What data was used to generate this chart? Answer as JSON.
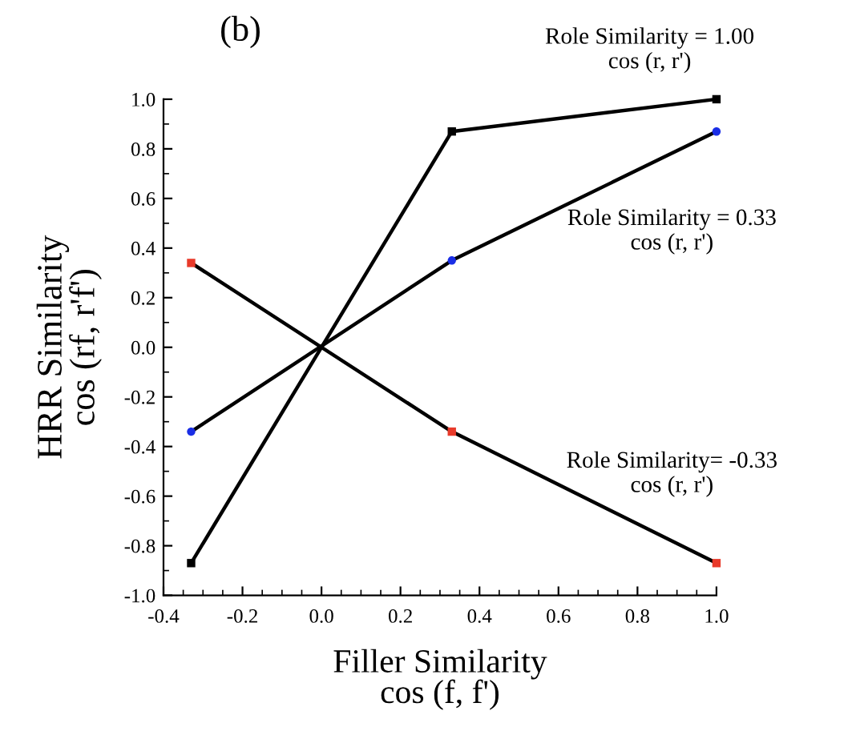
{
  "chart_data": {
    "type": "line",
    "title": "(b)",
    "xlabel": "Filler Similarity\ncos (f, f')",
    "ylabel": "HRR Similarity\ncos (rf, r'f')",
    "x": [
      -0.33,
      0.33,
      1.0
    ],
    "series": [
      {
        "name": "Role Similarity = 1.00\ncos (r, r')",
        "color": "#000000",
        "colors": [
          "#000000",
          "#000000",
          "#000000"
        ],
        "marker": "square",
        "values": [
          -0.87,
          0.87,
          1.0
        ]
      },
      {
        "name": "Role Similarity = 0.33\ncos (r, r')",
        "color": "#000000",
        "colors": [
          "#1a2ee6",
          "#1a2ee6",
          "#1a2ee6"
        ],
        "marker": "circle",
        "values": [
          -0.34,
          0.35,
          0.87
        ]
      },
      {
        "name": "Role Similarity= -0.33\ncos (r, r')",
        "color": "#000000",
        "colors": [
          "#e83a2a",
          "#e83a2a",
          "#e83a2a"
        ],
        "marker": "square",
        "values": [
          0.34,
          -0.34,
          -0.87
        ]
      }
    ],
    "xlim": [
      -0.4,
      1.0
    ],
    "ylim": [
      -1.0,
      1.0
    ],
    "xticks": [
      -0.4,
      -0.2,
      {
        "value": 0,
        "label": "0.0"
      },
      0.2,
      0.4,
      0.6,
      0.8,
      {
        "value": 1,
        "label": "1.0"
      }
    ],
    "yticks": [
      {
        "value": -1,
        "label": "-1.0"
      },
      -0.8,
      -0.6,
      -0.4,
      -0.2,
      {
        "value": 0,
        "label": "0.0"
      },
      0.2,
      0.4,
      0.6,
      0.8,
      {
        "value": 1,
        "label": "1.0"
      }
    ],
    "grid": false,
    "legend": false,
    "line_style": "solid"
  }
}
